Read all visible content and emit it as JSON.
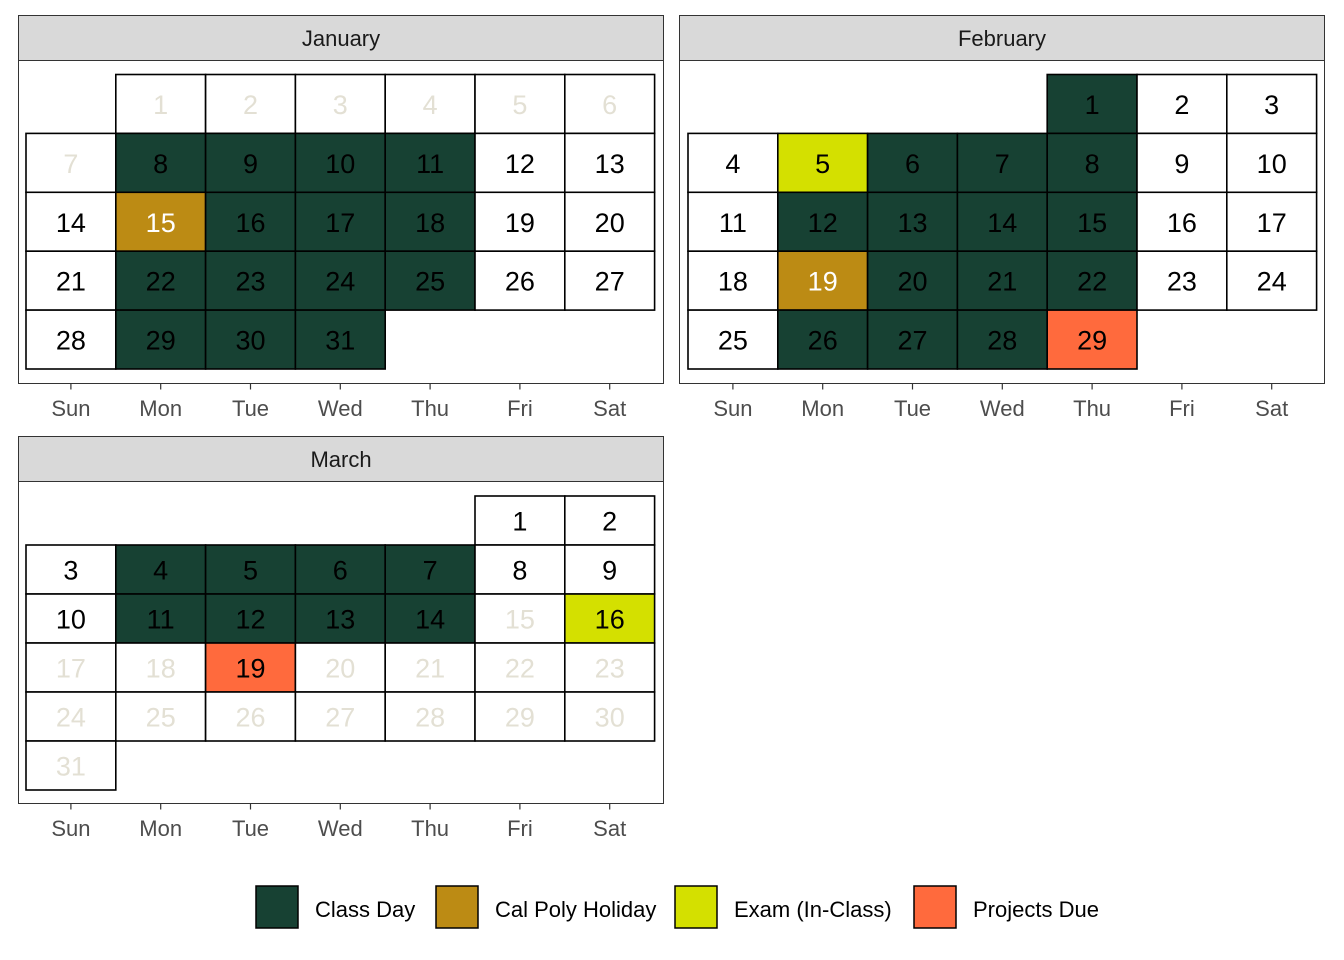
{
  "chart_data": {
    "type": "calendar-heatmap",
    "weekdays": [
      "Sun",
      "Mon",
      "Tue",
      "Wed",
      "Thu",
      "Fri",
      "Sat"
    ],
    "legend": [
      {
        "key": "class",
        "label": "Class Day",
        "color": "#174133"
      },
      {
        "key": "holiday",
        "label": "Cal Poly Holiday",
        "color": "#BC8B14"
      },
      {
        "key": "exam",
        "label": "Exam (In-Class)",
        "color": "#D4E000"
      },
      {
        "key": "project",
        "label": "Projects Due",
        "color": "#FF6A3D"
      }
    ],
    "colors": {
      "normal_text": "#000000",
      "faded_text": "#E3E0D4",
      "light_text": "#FFFFFF",
      "cell_border": "#000000"
    },
    "months": [
      {
        "name": "January",
        "days": 31,
        "first_weekday": 1,
        "faded_days": [
          1,
          2,
          3,
          4,
          5,
          6,
          7
        ],
        "events": {
          "class": [
            8,
            9,
            10,
            11,
            16,
            17,
            18,
            22,
            23,
            24,
            25,
            29,
            30,
            31
          ],
          "holiday": [
            15
          ],
          "exam": [],
          "project": []
        }
      },
      {
        "name": "February",
        "days": 29,
        "first_weekday": 4,
        "faded_days": [],
        "events": {
          "class": [
            1,
            6,
            7,
            8,
            12,
            13,
            14,
            15,
            20,
            21,
            22,
            26,
            27,
            28
          ],
          "holiday": [
            19
          ],
          "exam": [
            5
          ],
          "project": [
            29
          ]
        }
      },
      {
        "name": "March",
        "days": 31,
        "first_weekday": 5,
        "faded_days": [
          15,
          17,
          18,
          20,
          21,
          22,
          23,
          24,
          25,
          26,
          27,
          28,
          29,
          30,
          31
        ],
        "events": {
          "class": [
            4,
            5,
            6,
            7,
            11,
            12,
            13,
            14
          ],
          "holiday": [],
          "exam": [
            16
          ],
          "project": [
            19
          ]
        }
      }
    ]
  }
}
